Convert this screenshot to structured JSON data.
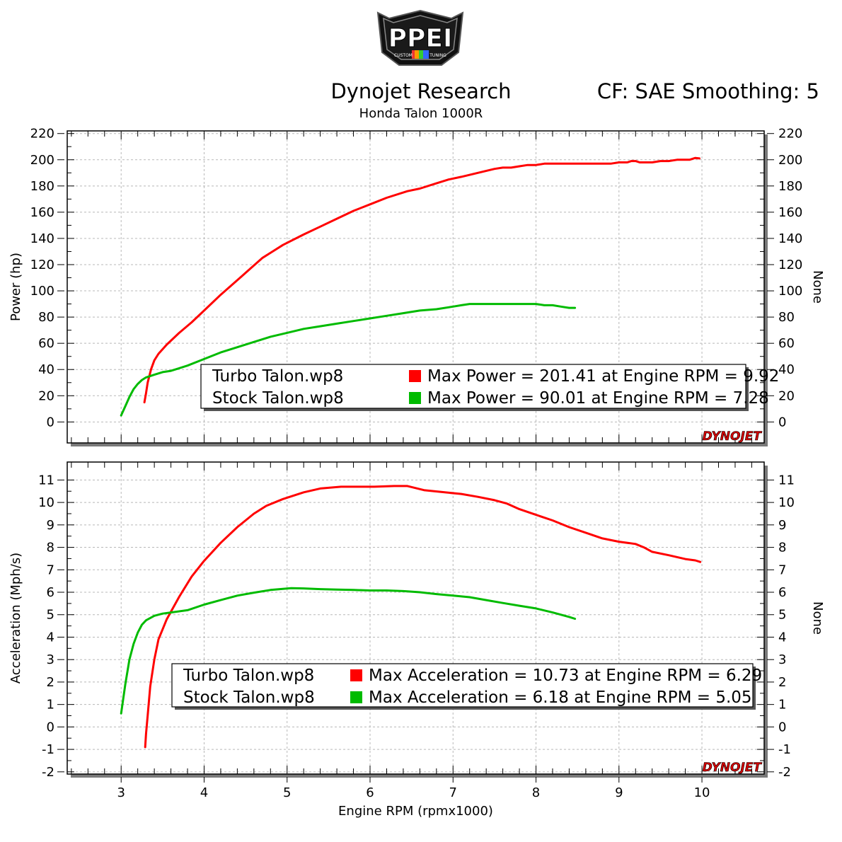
{
  "header": {
    "logo_text": "PPEI",
    "logo_subtext_left": "CUSTOM",
    "logo_subtext_right": "TUNING",
    "title": "Dynojet Research",
    "subtitle": "Honda Talon 1000R",
    "settings": "CF: SAE Smoothing: 5"
  },
  "watermark": "DYNOJET",
  "colors": {
    "turbo": "#ff0000",
    "stock": "#00bb00",
    "grid": "#b8b8b8"
  },
  "chart_data": [
    {
      "type": "line",
      "ylabel": "Power (hp)",
      "ylabel_right": "None",
      "xlim": [
        2.35,
        10.75
      ],
      "ylim": [
        -16,
        222
      ],
      "yticks": [
        0,
        20,
        40,
        60,
        80,
        100,
        120,
        140,
        160,
        180,
        200,
        220
      ],
      "yticks_right": [
        0,
        20,
        40,
        60,
        80,
        100,
        120,
        140,
        160,
        180,
        200,
        220
      ],
      "grid": true,
      "legend": {
        "placement": "bottom-right",
        "entries": [
          {
            "file": "Turbo Talon.wp8",
            "text": "Max Power = 201.41 at Engine RPM = 9.92"
          },
          {
            "file": "Stock Talon.wp8",
            "text": "Max Power = 90.01 at Engine RPM = 7.28"
          }
        ]
      },
      "series": [
        {
          "name": "Turbo Talon.wp8",
          "color": "#ff0000",
          "x": [
            3.28,
            3.3,
            3.32,
            3.36,
            3.4,
            3.45,
            3.55,
            3.7,
            3.85,
            4.0,
            4.2,
            4.45,
            4.7,
            4.95,
            5.2,
            5.4,
            5.6,
            5.8,
            6.0,
            6.2,
            6.45,
            6.6,
            6.8,
            6.95,
            7.1,
            7.3,
            7.5,
            7.6,
            7.7,
            7.8,
            7.9,
            8.0,
            8.1,
            8.2,
            8.4,
            8.6,
            8.75,
            8.9,
            9.0,
            9.1,
            9.15,
            9.2,
            9.25,
            9.3,
            9.4,
            9.5,
            9.6,
            9.7,
            9.8,
            9.85,
            9.92,
            9.97
          ],
          "y": [
            15,
            22,
            30,
            40,
            47,
            52,
            59,
            68,
            76,
            85,
            97,
            111,
            125,
            135,
            143,
            149,
            155,
            161,
            166,
            171,
            176,
            178,
            182,
            185,
            187,
            190,
            193,
            194,
            194,
            195,
            196,
            196,
            197,
            197,
            197,
            197,
            197,
            197,
            198,
            198,
            199,
            199,
            198,
            198,
            198,
            199,
            199,
            200,
            200,
            200,
            201.41,
            201
          ]
        },
        {
          "name": "Stock Talon.wp8",
          "color": "#00bb00",
          "x": [
            3.0,
            3.05,
            3.1,
            3.15,
            3.2,
            3.25,
            3.3,
            3.4,
            3.5,
            3.6,
            3.7,
            3.8,
            4.0,
            4.2,
            4.4,
            4.6,
            4.8,
            5.0,
            5.2,
            5.4,
            5.6,
            5.8,
            6.0,
            6.2,
            6.4,
            6.6,
            6.8,
            7.0,
            7.1,
            7.2,
            7.28,
            7.4,
            7.6,
            7.8,
            8.0,
            8.1,
            8.2,
            8.3,
            8.4,
            8.47
          ],
          "y": [
            5,
            12,
            19,
            25,
            29,
            32,
            34,
            36,
            38,
            39,
            41,
            43,
            48,
            53,
            57,
            61,
            65,
            68,
            71,
            73,
            75,
            77,
            79,
            81,
            83,
            85,
            86,
            88,
            89,
            90,
            90.01,
            90,
            90,
            90,
            90,
            89,
            89,
            88,
            87,
            87
          ]
        }
      ]
    },
    {
      "type": "line",
      "xlabel": "Engine RPM (rpmx1000)",
      "ylabel": "Acceleration (Mph/s)",
      "ylabel_right": "None",
      "xlim": [
        2.35,
        10.75
      ],
      "ylim": [
        -2.1,
        11.8
      ],
      "xticks": [
        3,
        4,
        5,
        6,
        7,
        8,
        9,
        10
      ],
      "yticks": [
        -2,
        -1,
        0,
        1,
        2,
        3,
        4,
        5,
        6,
        7,
        8,
        9,
        10,
        11
      ],
      "yticks_right": [
        -2,
        -1,
        0,
        1,
        2,
        3,
        4,
        5,
        6,
        7,
        8,
        9,
        10,
        11
      ],
      "grid": true,
      "legend": {
        "placement": "bottom-right",
        "entries": [
          {
            "file": "Turbo Talon.wp8",
            "text": "Max Acceleration = 10.73 at Engine RPM = 6.29"
          },
          {
            "file": "Stock Talon.wp8",
            "text": "Max Acceleration = 6.18 at Engine RPM = 5.05"
          }
        ]
      },
      "series": [
        {
          "name": "Turbo Talon.wp8",
          "color": "#ff0000",
          "x": [
            3.29,
            3.3,
            3.32,
            3.35,
            3.4,
            3.45,
            3.55,
            3.7,
            3.85,
            4.0,
            4.2,
            4.4,
            4.6,
            4.75,
            4.95,
            5.2,
            5.4,
            5.65,
            5.85,
            6.05,
            6.2,
            6.29,
            6.45,
            6.65,
            6.9,
            7.1,
            7.3,
            7.5,
            7.65,
            7.8,
            8.0,
            8.2,
            8.4,
            8.6,
            8.8,
            9.0,
            9.2,
            9.3,
            9.4,
            9.6,
            9.8,
            9.92,
            9.98
          ],
          "y": [
            -0.9,
            -0.3,
            0.5,
            1.8,
            3.0,
            3.9,
            4.8,
            5.8,
            6.7,
            7.4,
            8.2,
            8.9,
            9.5,
            9.85,
            10.15,
            10.45,
            10.62,
            10.7,
            10.7,
            10.7,
            10.72,
            10.73,
            10.73,
            10.55,
            10.45,
            10.38,
            10.25,
            10.1,
            9.95,
            9.7,
            9.45,
            9.2,
            8.9,
            8.65,
            8.4,
            8.25,
            8.15,
            8.0,
            7.8,
            7.65,
            7.48,
            7.42,
            7.35
          ]
        },
        {
          "name": "Stock Talon.wp8",
          "color": "#00bb00",
          "x": [
            3.0,
            3.05,
            3.1,
            3.15,
            3.2,
            3.25,
            3.3,
            3.4,
            3.5,
            3.6,
            3.8,
            4.0,
            4.2,
            4.4,
            4.6,
            4.8,
            5.05,
            5.2,
            5.4,
            5.6,
            5.8,
            6.0,
            6.2,
            6.4,
            6.6,
            6.8,
            7.0,
            7.2,
            7.4,
            7.6,
            7.8,
            8.0,
            8.2,
            8.4,
            8.47
          ],
          "y": [
            0.6,
            1.9,
            3.0,
            3.7,
            4.2,
            4.55,
            4.75,
            4.95,
            5.05,
            5.1,
            5.2,
            5.45,
            5.65,
            5.85,
            5.98,
            6.1,
            6.18,
            6.17,
            6.14,
            6.12,
            6.1,
            6.08,
            6.08,
            6.05,
            6.0,
            5.92,
            5.85,
            5.78,
            5.65,
            5.52,
            5.4,
            5.28,
            5.1,
            4.9,
            4.82
          ]
        }
      ]
    }
  ]
}
